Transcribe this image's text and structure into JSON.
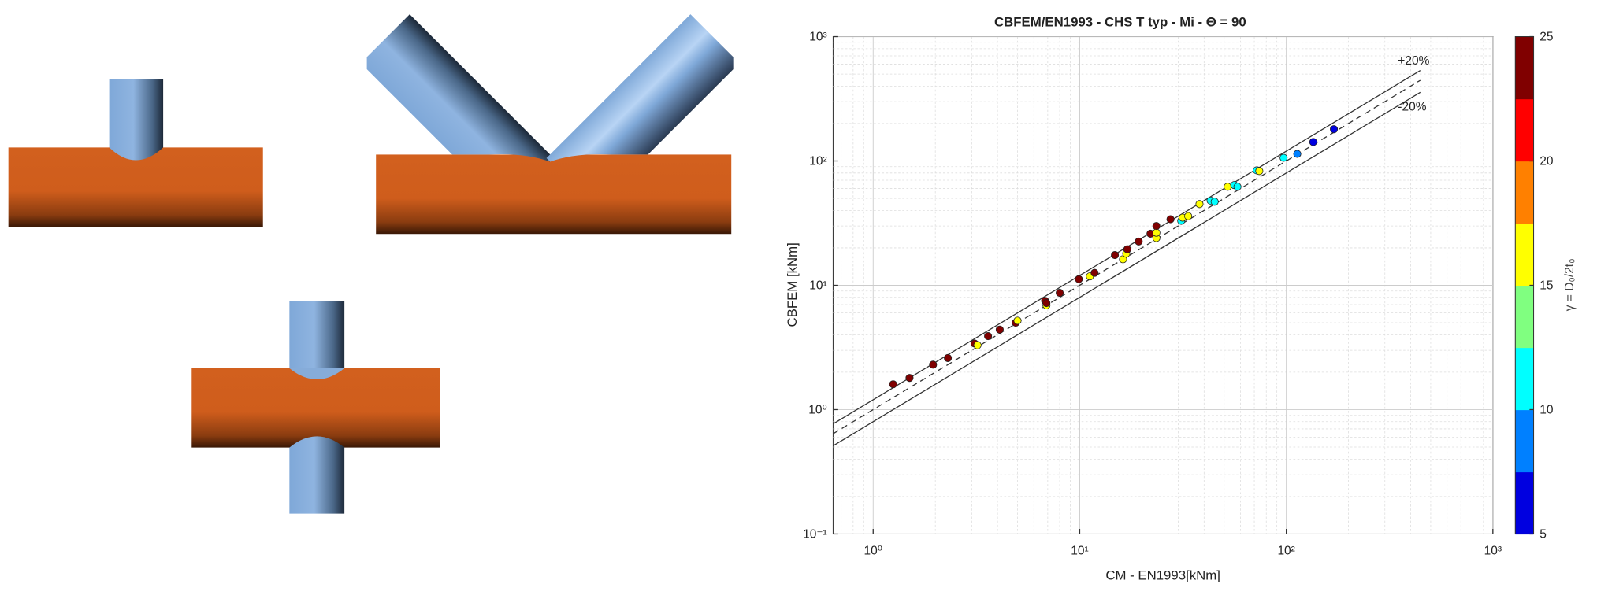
{
  "chart_data": {
    "type": "scatter",
    "title": "CBFEM/EN1993 - CHS T typ - Mi - Θ = 90",
    "x_label": "CM - EN1993[kNm]",
    "y_label": "CBFEM [kNm]",
    "log_x": true,
    "log_y": true,
    "grid": true,
    "xlim": [
      0.64,
      1000
    ],
    "ylim": [
      0.1,
      1000
    ],
    "xticks": [
      {
        "value": 1,
        "label": "10⁰"
      },
      {
        "value": 10,
        "label": "10¹"
      },
      {
        "value": 100,
        "label": "10²"
      },
      {
        "value": 1000,
        "label": "10³"
      }
    ],
    "yticks": [
      {
        "value": 0.1,
        "label": "10⁻¹"
      },
      {
        "value": 1,
        "label": "10⁰"
      },
      {
        "value": 10,
        "label": "10¹"
      },
      {
        "value": 100,
        "label": "10²"
      },
      {
        "value": 1000,
        "label": "10³"
      }
    ],
    "reference_lines": [
      {
        "label": "+20%",
        "factor": 1.2,
        "dashed": false
      },
      {
        "factor": 1,
        "dashed": true
      },
      {
        "label": "-20%",
        "factor": 0.8,
        "dashed": false
      }
    ],
    "x": [
      1.25,
      1.5,
      1.95,
      2.3,
      3.1,
      3.2,
      3.6,
      4.1,
      4.9,
      5.0,
      6.8,
      6.9,
      6.9,
      8.0,
      9.9,
      11.2,
      11.8,
      14.8,
      16.2,
      16.8,
      17.0,
      19.3,
      22.0,
      23.5,
      23.5,
      23.5,
      27.5,
      31.0,
      31.5,
      33.5,
      38.0,
      43.0,
      45.0,
      52.0,
      56.0,
      58.0,
      72.0,
      74.0,
      97.0,
      113.0,
      135.0,
      170.0
    ],
    "y": [
      1.6,
      1.8,
      2.3,
      2.6,
      3.4,
      3.3,
      3.9,
      4.4,
      5.0,
      5.2,
      7.5,
      6.9,
      7.2,
      8.7,
      11.2,
      11.8,
      12.6,
      17.5,
      16.2,
      18.0,
      19.5,
      22.5,
      26.0,
      24.0,
      26.5,
      30.0,
      34.0,
      33.0,
      35.0,
      36.0,
      45.0,
      48.0,
      47.0,
      62.0,
      64.0,
      62.0,
      84.0,
      83.0,
      106.0,
      114.0,
      142.0,
      180.0
    ],
    "z": [
      25,
      23,
      25,
      23,
      25,
      17,
      23,
      25,
      25,
      17,
      25,
      17,
      23,
      25,
      25,
      17,
      23,
      25,
      15,
      17,
      23,
      25,
      23,
      15,
      17,
      25,
      25,
      12,
      17,
      15,
      17,
      12,
      11,
      15,
      10,
      12,
      12,
      15,
      10,
      8,
      6,
      6
    ],
    "colorbar": {
      "label": "γ = D₀/2t₀",
      "lim": [
        5,
        25
      ],
      "ticks": [
        5,
        10,
        15,
        20,
        25
      ],
      "colors": [
        "#0000e0",
        "#0080ff",
        "#00ffff",
        "#80ff80",
        "#ffff00",
        "#ff8000",
        "#ff0000",
        "#800000"
      ]
    }
  }
}
